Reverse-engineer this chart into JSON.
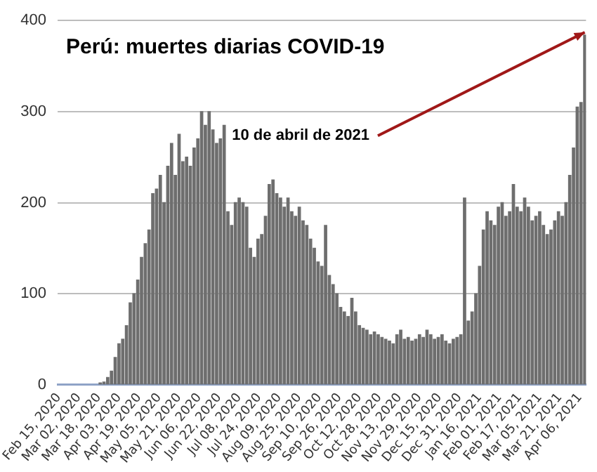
{
  "chart_data": {
    "type": "bar",
    "title": "Perú: muertes diarias COVID-19",
    "x": [
      "2020-03-19",
      "2020-03-22",
      "2020-03-25",
      "2020-03-28",
      "2020-03-31",
      "2020-04-03",
      "2020-04-06",
      "2020-04-09",
      "2020-04-12",
      "2020-04-15",
      "2020-04-18",
      "2020-04-21",
      "2020-04-24",
      "2020-04-27",
      "2020-04-30",
      "2020-05-03",
      "2020-05-06",
      "2020-05-09",
      "2020-05-12",
      "2020-05-15",
      "2020-05-18",
      "2020-05-21",
      "2020-05-24",
      "2020-05-27",
      "2020-05-30",
      "2020-06-02",
      "2020-06-05",
      "2020-06-08",
      "2020-06-11",
      "2020-06-14",
      "2020-06-17",
      "2020-06-20",
      "2020-06-23",
      "2020-06-26",
      "2020-06-29",
      "2020-07-02",
      "2020-07-05",
      "2020-07-08",
      "2020-07-11",
      "2020-07-14",
      "2020-07-17",
      "2020-07-20",
      "2020-07-23",
      "2020-07-26",
      "2020-07-29",
      "2020-08-01",
      "2020-08-04",
      "2020-08-07",
      "2020-08-10",
      "2020-08-13",
      "2020-08-16",
      "2020-08-19",
      "2020-08-22",
      "2020-08-25",
      "2020-08-28",
      "2020-08-31",
      "2020-09-03",
      "2020-09-06",
      "2020-09-09",
      "2020-09-12",
      "2020-09-15",
      "2020-09-18",
      "2020-09-21",
      "2020-09-24",
      "2020-09-27",
      "2020-09-30",
      "2020-10-03",
      "2020-10-06",
      "2020-10-09",
      "2020-10-12",
      "2020-10-15",
      "2020-10-18",
      "2020-10-21",
      "2020-10-24",
      "2020-10-27",
      "2020-10-30",
      "2020-11-02",
      "2020-11-05",
      "2020-11-08",
      "2020-11-11",
      "2020-11-14",
      "2020-11-17",
      "2020-11-20",
      "2020-11-23",
      "2020-11-26",
      "2020-11-29",
      "2020-12-02",
      "2020-12-05",
      "2020-12-08",
      "2020-12-11",
      "2020-12-14",
      "2020-12-17",
      "2020-12-20",
      "2020-12-23",
      "2020-12-26",
      "2020-12-29",
      "2021-01-01",
      "2021-01-04",
      "2021-01-07",
      "2021-01-10",
      "2021-01-13",
      "2021-01-16",
      "2021-01-19",
      "2021-01-22",
      "2021-01-25",
      "2021-01-28",
      "2021-01-31",
      "2021-02-03",
      "2021-02-06",
      "2021-02-09",
      "2021-02-12",
      "2021-02-15",
      "2021-02-18",
      "2021-02-21",
      "2021-02-24",
      "2021-02-27",
      "2021-03-02",
      "2021-03-05",
      "2021-03-08",
      "2021-03-11",
      "2021-03-14",
      "2021-03-17",
      "2021-03-20",
      "2021-03-23",
      "2021-03-26",
      "2021-03-29",
      "2021-04-01",
      "2021-04-04",
      "2021-04-07",
      "2021-04-10"
    ],
    "values": [
      2,
      3,
      8,
      15,
      30,
      45,
      50,
      65,
      90,
      100,
      115,
      140,
      155,
      170,
      210,
      215,
      230,
      200,
      240,
      265,
      230,
      275,
      245,
      250,
      240,
      260,
      270,
      300,
      285,
      300,
      280,
      265,
      270,
      285,
      190,
      175,
      200,
      205,
      200,
      195,
      150,
      140,
      160,
      165,
      185,
      220,
      225,
      210,
      205,
      195,
      205,
      190,
      185,
      195,
      180,
      175,
      160,
      150,
      135,
      130,
      175,
      120,
      110,
      100,
      85,
      80,
      75,
      95,
      80,
      65,
      62,
      60,
      55,
      58,
      55,
      52,
      50,
      48,
      45,
      55,
      60,
      50,
      52,
      48,
      50,
      55,
      52,
      60,
      55,
      50,
      52,
      55,
      48,
      45,
      50,
      52,
      55,
      205,
      70,
      80,
      100,
      130,
      170,
      190,
      180,
      175,
      195,
      200,
      185,
      190,
      220,
      195,
      190,
      205,
      195,
      180,
      185,
      190,
      175,
      165,
      170,
      180,
      190,
      185,
      200,
      230,
      260,
      305,
      310,
      384
    ],
    "color": "#6e6e6e",
    "xlim": [
      "2020-02-14",
      "2021-04-11"
    ],
    "xticks": [
      {
        "value": "2020-02-15",
        "label": "Feb 15, 2020"
      },
      {
        "value": "2020-03-02",
        "label": "Mar 02, 2020"
      },
      {
        "value": "2020-03-18",
        "label": "Mar 18, 2020"
      },
      {
        "value": "2020-04-03",
        "label": "Apr 03, 2020"
      },
      {
        "value": "2020-04-19",
        "label": "Apr 19, 2020"
      },
      {
        "value": "2020-05-05",
        "label": "May 05, 2020"
      },
      {
        "value": "2020-05-21",
        "label": "May 21, 2020"
      },
      {
        "value": "2020-06-06",
        "label": "Jun 06, 2020"
      },
      {
        "value": "2020-06-22",
        "label": "Jun 22, 2020"
      },
      {
        "value": "2020-07-08",
        "label": "Jul 08, 2020"
      },
      {
        "value": "2020-07-24",
        "label": "Jul 24, 2020"
      },
      {
        "value": "2020-08-09",
        "label": "Aug 09, 2020"
      },
      {
        "value": "2020-08-25",
        "label": "Aug 25, 2020"
      },
      {
        "value": "2020-09-10",
        "label": "Sep 10, 2020"
      },
      {
        "value": "2020-09-26",
        "label": "Sep 26, 2020"
      },
      {
        "value": "2020-10-12",
        "label": "Oct 12, 2020"
      },
      {
        "value": "2020-10-28",
        "label": "Oct 28, 2020"
      },
      {
        "value": "2020-11-13",
        "label": "Nov 13, 2020"
      },
      {
        "value": "2020-11-29",
        "label": "Nov 29, 2020"
      },
      {
        "value": "2020-12-15",
        "label": "Dec 15, 2020"
      },
      {
        "value": "2020-12-31",
        "label": "Dec 31, 2020"
      },
      {
        "value": "2021-01-16",
        "label": "Jan 16, 2021"
      },
      {
        "value": "2021-02-01",
        "label": "Feb 01, 2021"
      },
      {
        "value": "2021-02-17",
        "label": "Feb 17, 2021"
      },
      {
        "value": "2021-03-05",
        "label": "Mar 05, 2021"
      },
      {
        "value": "2021-03-21",
        "label": "Mar 21, 2021"
      },
      {
        "value": "2021-04-06",
        "label": "Apr 06, 2021"
      }
    ],
    "ylim": [
      0,
      400
    ],
    "yticks": [
      0,
      100,
      200,
      300,
      400
    ],
    "grid": "y",
    "legend": false,
    "annotations": [
      {
        "text": "10 de abril de 2021",
        "x": "2021-04-10",
        "y": 384
      }
    ]
  }
}
